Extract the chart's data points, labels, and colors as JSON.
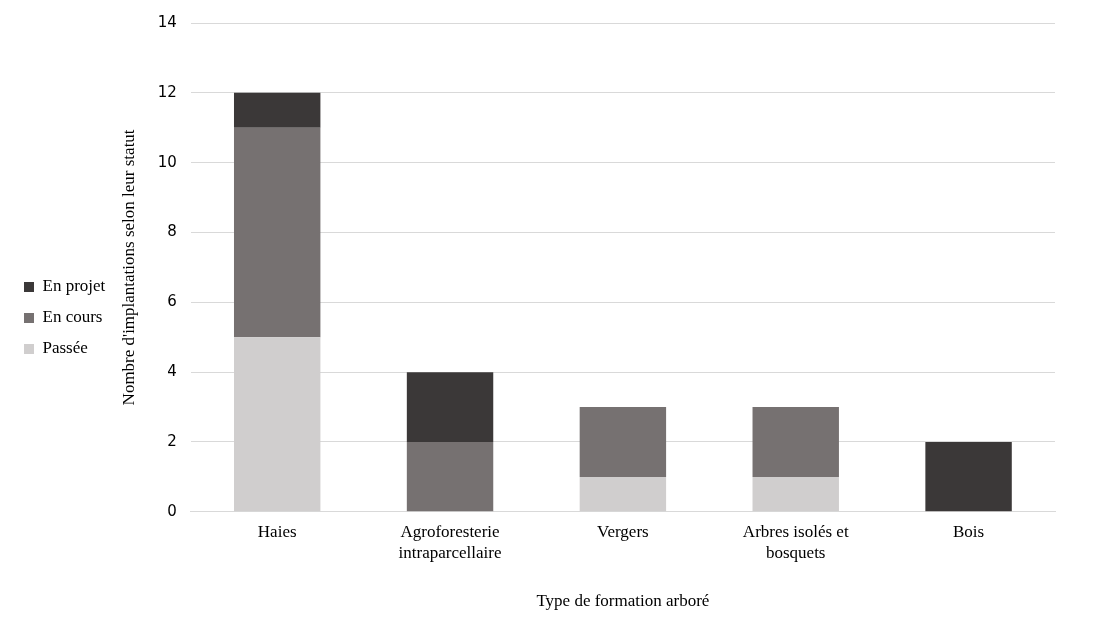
{
  "chart_data": {
    "type": "bar",
    "stacked": true,
    "xlabel": "Type de formation arboré",
    "ylabel": "Nombre d'implantations selon leur statut",
    "categories": [
      "Haies",
      "Agroforesterie intraparcellaire",
      "Vergers",
      "Arbres isolés et bosquets",
      "Bois"
    ],
    "series": [
      {
        "name": "Passée",
        "color": "#d0cece",
        "values": [
          5,
          0,
          1,
          1,
          0
        ]
      },
      {
        "name": "En cours",
        "color": "#767171",
        "values": [
          6,
          2,
          2,
          2,
          0
        ]
      },
      {
        "name": "En projet",
        "color": "#3b3838",
        "values": [
          1,
          2,
          0,
          0,
          2
        ]
      }
    ],
    "ylim": [
      0,
      14
    ],
    "yticks": [
      0,
      2,
      4,
      6,
      8,
      10,
      12,
      14
    ],
    "grid": "y",
    "legend": "left"
  }
}
